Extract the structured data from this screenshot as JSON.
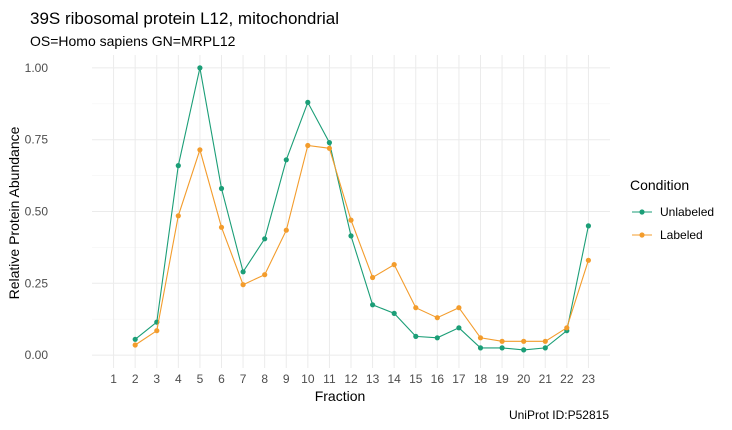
{
  "chart_data": {
    "type": "line",
    "title": "39S ribosomal protein L12, mitochondrial",
    "subtitle": "OS=Homo sapiens GN=MRPL12",
    "xlabel": "Fraction",
    "ylabel": "Relative Protein Abundance",
    "caption": "UniProt ID:P52815",
    "x": [
      1,
      2,
      3,
      4,
      5,
      6,
      7,
      8,
      9,
      10,
      11,
      12,
      13,
      14,
      15,
      16,
      17,
      18,
      19,
      20,
      21,
      22,
      23
    ],
    "xlim": [
      1,
      23
    ],
    "ylim": [
      0,
      1
    ],
    "yticks": [
      0,
      0.25,
      0.5,
      0.75,
      1
    ],
    "ytick_labels": [
      "0.00",
      "0.25",
      "0.50",
      "0.75",
      "1.00"
    ],
    "grid": true,
    "legend": {
      "title": "Condition",
      "position": "right"
    },
    "series": [
      {
        "name": "Unlabeled",
        "color": "#1b9e77",
        "values": [
          null,
          0.055,
          0.115,
          0.66,
          1.0,
          0.58,
          0.29,
          0.405,
          0.68,
          0.88,
          0.74,
          0.415,
          0.175,
          0.145,
          0.065,
          0.06,
          0.095,
          0.025,
          0.025,
          0.018,
          0.025,
          0.085,
          0.45
        ]
      },
      {
        "name": "Labeled",
        "color": "#f39c2c",
        "values": [
          null,
          0.035,
          0.085,
          0.485,
          0.715,
          0.445,
          0.245,
          0.28,
          0.435,
          0.73,
          0.72,
          0.47,
          0.27,
          0.315,
          0.165,
          0.13,
          0.165,
          0.06,
          0.048,
          0.048,
          0.048,
          0.095,
          0.33
        ]
      }
    ]
  }
}
